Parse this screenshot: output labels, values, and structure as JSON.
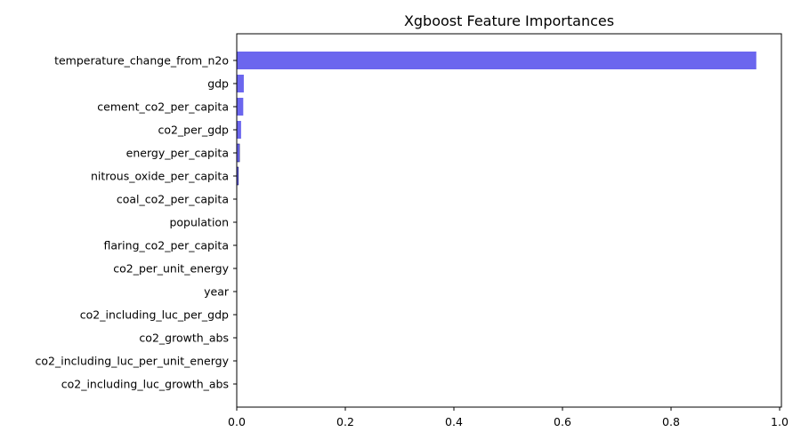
{
  "chart_data": {
    "type": "bar",
    "orientation": "horizontal",
    "title": "Xgboost Feature Importances",
    "xlabel": "",
    "ylabel": "",
    "xlim": [
      0,
      1.0
    ],
    "x_ticks": [
      0.0,
      0.2,
      0.4,
      0.6,
      0.8,
      1.0
    ],
    "x_tick_labels": [
      "0.0",
      "0.2",
      "0.4",
      "0.6",
      "0.8",
      "1.0"
    ],
    "grid": false,
    "legend": null,
    "bar_color": "#6b66ee",
    "categories": [
      "temperature_change_from_n2o",
      "gdp",
      "cement_co2_per_capita",
      "co2_per_gdp",
      "energy_per_capita",
      "nitrous_oxide_per_capita",
      "coal_co2_per_capita",
      "population",
      "flaring_co2_per_capita",
      "co2_per_unit_energy",
      "year",
      "co2_including_luc_per_gdp",
      "co2_growth_abs",
      "co2_including_luc_per_unit_energy",
      "co2_including_luc_growth_abs"
    ],
    "values": [
      0.957,
      0.013,
      0.012,
      0.008,
      0.005,
      0.003,
      0.0005,
      0.0003,
      0.0002,
      0.0001,
      0.0001,
      0.0001,
      0.0,
      0.0,
      0.0
    ]
  }
}
